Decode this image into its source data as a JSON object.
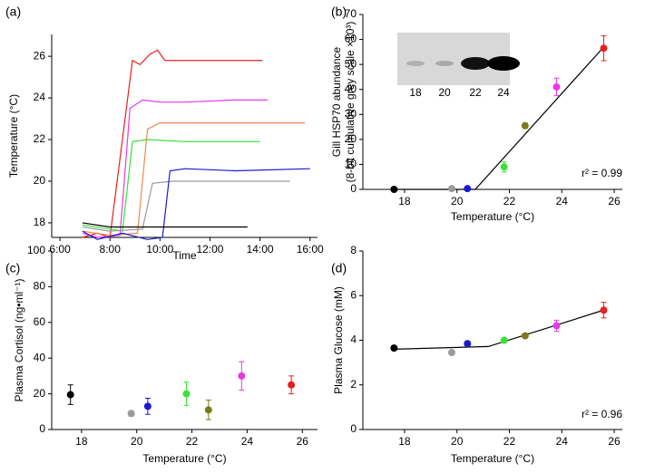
{
  "chart_data": [
    {
      "type": "line",
      "panel_label": "(a)",
      "xlabel": "Time",
      "ylabel": [
        "Temperature (°C)"
      ],
      "xlim": [
        5.67,
        16.3
      ],
      "ylim": [
        17.3,
        27.05
      ],
      "xticks": [
        {
          "value": 6,
          "label": "6:00"
        },
        {
          "value": 8,
          "label": "8:00"
        },
        {
          "value": 10,
          "label": "10:00"
        },
        {
          "value": 12,
          "label": "12:00"
        },
        {
          "value": 14,
          "label": "14:00"
        },
        {
          "value": 16,
          "label": "16:00"
        }
      ],
      "yticks": [
        18,
        20,
        22,
        24,
        26
      ],
      "series": [
        {
          "color": "#e8201e",
          "x": [
            6.9,
            7.5,
            8.0,
            8.9,
            9.2,
            9.6,
            9.9,
            10.2,
            12,
            14.1
          ],
          "values": [
            17.3,
            17.5,
            17.3,
            25.8,
            25.6,
            26.1,
            26.3,
            25.8,
            25.8,
            25.8
          ]
        },
        {
          "color": "#e838e8",
          "x": [
            6.9,
            7.5,
            8.4,
            8.8,
            9.3,
            10,
            11,
            13,
            14.3
          ],
          "values": [
            17.5,
            17.3,
            17.4,
            23.5,
            23.9,
            23.8,
            23.8,
            23.9,
            23.9
          ]
        },
        {
          "color": "#f08a50",
          "x": [
            6.9,
            8,
            9.1,
            9.5,
            10,
            11,
            13,
            15.8
          ],
          "values": [
            17.6,
            17.4,
            17.5,
            22.5,
            22.8,
            22.8,
            22.8,
            22.8
          ]
        },
        {
          "color": "#3be03b",
          "x": [
            6.9,
            8,
            8.5,
            8.9,
            9.5,
            11,
            14
          ],
          "values": [
            17.9,
            17.7,
            17.6,
            21.9,
            22.0,
            21.9,
            21.9
          ]
        },
        {
          "color": "#9a9a9a",
          "x": [
            6.9,
            8,
            9.3,
            9.7,
            10.5,
            12,
            15.2
          ],
          "values": [
            17.8,
            17.6,
            17.7,
            19.9,
            20.0,
            20.0,
            20.0
          ]
        },
        {
          "color": "#1a1ad0",
          "x": [
            6.9,
            7.5,
            8.5,
            9.5,
            10.1,
            10.4,
            11,
            13,
            16
          ],
          "values": [
            17.6,
            17.2,
            17.5,
            17.2,
            17.3,
            20.5,
            20.6,
            20.5,
            20.6
          ]
        },
        {
          "color": "#000000",
          "x": [
            6.9,
            8,
            13.5
          ],
          "values": [
            18.0,
            17.8,
            17.8
          ]
        }
      ]
    },
    {
      "type": "scatter",
      "panel_label": "(b)",
      "xlabel": "Temperature (°C)",
      "ylabel": [
        "Gill HSP70 abundance",
        "(8-bit cumulative grey scale ×10³)"
      ],
      "xlim": [
        16.41,
        26.31
      ],
      "ylim": [
        0,
        70
      ],
      "xticks": [
        18,
        20,
        22,
        24,
        26
      ],
      "yticks": [
        0,
        10,
        20,
        30,
        40,
        50,
        60,
        70
      ],
      "x": [
        17.6,
        19.8,
        20.4,
        21.8,
        22.6,
        23.8,
        25.6
      ],
      "values": [
        0,
        0.3,
        0.3,
        9,
        25.5,
        41,
        56.5
      ],
      "errors": [
        0.3,
        0.3,
        0.3,
        2,
        1,
        3.5,
        5
      ],
      "colors": [
        "#000000",
        "#9a9a9a",
        "#1a1ad0",
        "#3be03b",
        "#7a7a1a",
        "#e838e8",
        "#e8201e"
      ],
      "fit": {
        "x": [
          17.6,
          20.7,
          25.6
        ],
        "values": [
          0,
          0,
          57
        ]
      },
      "annotation": "r² = 0.99",
      "inset_labels": [
        "18",
        "20",
        "22",
        "24"
      ]
    },
    {
      "type": "scatter",
      "panel_label": "(c)",
      "xlabel": "Temperature (°C)",
      "ylabel": [
        "Plasma Cortisol (ng•ml⁻¹)"
      ],
      "xlim": [
        16.92,
        26.55
      ],
      "ylim": [
        0,
        100
      ],
      "xticks": [
        18,
        20,
        22,
        24,
        26
      ],
      "yticks": [
        0,
        20,
        40,
        60,
        80,
        100
      ],
      "x": [
        17.6,
        19.8,
        20.4,
        21.8,
        22.6,
        23.8,
        25.6
      ],
      "values": [
        19.5,
        9,
        13,
        20,
        11,
        30,
        25
      ],
      "errors": [
        5.5,
        1.5,
        4.5,
        6.5,
        5.5,
        8,
        5
      ],
      "colors": [
        "#000000",
        "#9a9a9a",
        "#1a1ad0",
        "#3be03b",
        "#7a7a1a",
        "#e838e8",
        "#e8201e"
      ]
    },
    {
      "type": "scatter",
      "panel_label": "(d)",
      "xlabel": "Temperature (°C)",
      "ylabel": [
        "Plasma Glucose (mM)"
      ],
      "xlim": [
        16.41,
        26.31
      ],
      "ylim": [
        0,
        8
      ],
      "xticks": [
        18,
        20,
        22,
        24,
        26
      ],
      "yticks": [
        0,
        2,
        4,
        6,
        8
      ],
      "x": [
        17.6,
        19.8,
        20.4,
        21.8,
        22.6,
        23.8,
        25.6
      ],
      "values": [
        3.65,
        3.45,
        3.85,
        4.0,
        4.2,
        4.65,
        5.35
      ],
      "errors": [
        0.1,
        0.1,
        0.1,
        0.1,
        0.1,
        0.25,
        0.35
      ],
      "colors": [
        "#000000",
        "#9a9a9a",
        "#1a1ad0",
        "#3be03b",
        "#7a7a1a",
        "#e838e8",
        "#e8201e"
      ],
      "fit": {
        "x": [
          17.6,
          21.2,
          25.6
        ],
        "values": [
          3.6,
          3.72,
          5.35
        ]
      },
      "annotation": "r² = 0.96"
    }
  ]
}
